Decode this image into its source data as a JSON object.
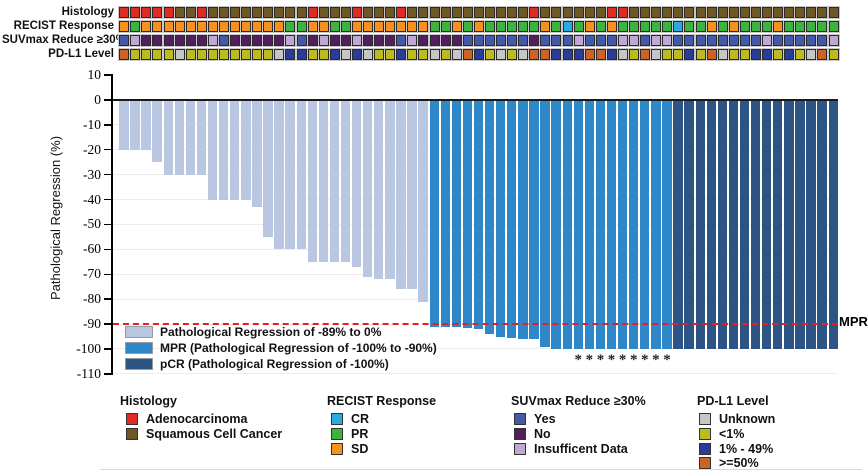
{
  "annotation_tracks": {
    "labels": [
      "Histology",
      "RECIST Response",
      "SUVmax Reduce ≥30%",
      "PD-L1 Level"
    ],
    "histology": [
      "A",
      "A",
      "A",
      "A",
      "A",
      "S",
      "S",
      "A",
      "S",
      "S",
      "S",
      "S",
      "S",
      "S",
      "S",
      "S",
      "S",
      "A",
      "S",
      "S",
      "S",
      "A",
      "S",
      "S",
      "S",
      "A",
      "S",
      "S",
      "S",
      "S",
      "S",
      "S",
      "S",
      "S",
      "S",
      "S",
      "S",
      "A",
      "S",
      "S",
      "S",
      "S",
      "S",
      "S",
      "A",
      "A",
      "S",
      "S",
      "S",
      "S",
      "S",
      "S",
      "S",
      "S",
      "S",
      "S",
      "S",
      "S",
      "S",
      "S",
      "S",
      "S",
      "S",
      "S",
      "S"
    ],
    "recist": [
      "SD",
      "PR",
      "SD",
      "SD",
      "SD",
      "SD",
      "SD",
      "SD",
      "SD",
      "SD",
      "SD",
      "SD",
      "SD",
      "SD",
      "SD",
      "PR",
      "PR",
      "SD",
      "SD",
      "PR",
      "PR",
      "SD",
      "SD",
      "SD",
      "SD",
      "SD",
      "SD",
      "SD",
      "PR",
      "PR",
      "SD",
      "PR",
      "SD",
      "PR",
      "PR",
      "PR",
      "PR",
      "PR",
      "SD",
      "PR",
      "CR",
      "PR",
      "SD",
      "PR",
      "SD",
      "PR",
      "PR",
      "PR",
      "PR",
      "PR",
      "CR",
      "PR",
      "PR",
      "SD",
      "PR",
      "SD",
      "PR",
      "PR",
      "PR",
      "SD",
      "PR",
      "PR",
      "PR",
      "PR",
      "PR"
    ],
    "suvmax": [
      "Y",
      "I",
      "N",
      "N",
      "N",
      "N",
      "N",
      "N",
      "I",
      "Y",
      "N",
      "N",
      "N",
      "N",
      "N",
      "I",
      "Y",
      "N",
      "I",
      "N",
      "N",
      "I",
      "N",
      "N",
      "N",
      "Y",
      "I",
      "N",
      "N",
      "N",
      "N",
      "Y",
      "Y",
      "Y",
      "Y",
      "Y",
      "Y",
      "N",
      "Y",
      "Y",
      "Y",
      "I",
      "Y",
      "Y",
      "Y",
      "I",
      "I",
      "Y",
      "I",
      "I",
      "Y",
      "Y",
      "Y",
      "Y",
      "Y",
      "Y",
      "Y",
      "Y",
      "I",
      "Y",
      "Y",
      "Y",
      "Y",
      "Y",
      "I"
    ],
    "pdl1": [
      "H",
      "L",
      "L",
      "L",
      "L",
      "U",
      "L",
      "L",
      "L",
      "L",
      "L",
      "L",
      "L",
      "L",
      "U",
      "M",
      "M",
      "L",
      "L",
      "M",
      "U",
      "M",
      "U",
      "L",
      "L",
      "M",
      "L",
      "L",
      "U",
      "L",
      "U",
      "H",
      "M",
      "L",
      "U",
      "L",
      "U",
      "H",
      "H",
      "M",
      "M",
      "M",
      "H",
      "H",
      "M",
      "U",
      "L",
      "H",
      "U",
      "L",
      "L",
      "M",
      "L",
      "H",
      "U",
      "L",
      "L",
      "M",
      "M",
      "L",
      "M",
      "L",
      "U",
      "H",
      "L"
    ]
  },
  "colors": {
    "histology": {
      "A": "#e12a26",
      "S": "#6d5826"
    },
    "recist": {
      "CR": "#29aae1",
      "PR": "#3db33d",
      "SD": "#f5921e"
    },
    "suvmax": {
      "Y": "#4459a7",
      "N": "#511f5d",
      "I": "#c1a7d6"
    },
    "pdl1": {
      "U": "#c6c6c6",
      "L": "#bcbc20",
      "M": "#2b3c97",
      "H": "#cd6227"
    },
    "bars": {
      "light": "#b9c7e3",
      "mpr": "#2e87c8",
      "pcr": "#2c5585"
    },
    "reference_line": "#ed1c24"
  },
  "chart_data": {
    "type": "bar",
    "title": "",
    "xlabel": "",
    "ylabel": "Pathological Regression (%)",
    "ylim": [
      -110,
      10
    ],
    "yticks": [
      10,
      0,
      -10,
      -20,
      -30,
      -40,
      -50,
      -60,
      -70,
      -80,
      -90,
      -100,
      -110
    ],
    "grid": true,
    "values": [
      -20,
      -20,
      -20,
      -25,
      -30,
      -30,
      -30,
      -30,
      -40,
      -40,
      -40,
      -40,
      -43,
      -55,
      -60,
      -60,
      -60,
      -65,
      -65,
      -65,
      -65,
      -67,
      -71,
      -72,
      -72,
      -76,
      -76,
      -81,
      -91,
      -91,
      -91,
      -91.5,
      -92,
      -94,
      -95,
      -95.5,
      -96,
      -96,
      -99,
      -100,
      -100,
      -100,
      -100,
      -100,
      -100,
      -100,
      -100,
      -100,
      -100,
      -100,
      -100,
      -100,
      -100,
      -100,
      -100,
      -100,
      -100,
      -100,
      -100,
      -100,
      -100,
      -100,
      -100,
      -100,
      -100
    ],
    "group_ranges": {
      "light": [
        1,
        28
      ],
      "mpr": [
        29,
        50
      ],
      "pcr": [
        51,
        65
      ]
    },
    "asterisk_columns": [
      42,
      43,
      44,
      45,
      46,
      47,
      48,
      49,
      50
    ],
    "reference_line": {
      "value": -90,
      "label": "MPR"
    }
  },
  "plot_legend": {
    "items": [
      {
        "key": "light",
        "label": "Pathological Regression of -89% to 0%"
      },
      {
        "key": "mpr",
        "label": "MPR (Pathological Regression of -100% to -90%)"
      },
      {
        "key": "pcr",
        "label": "pCR (Pathological Regression of -100%)"
      }
    ]
  },
  "bottom_legend": {
    "groups": [
      {
        "title": "Histology",
        "x": 120,
        "sx": 126,
        "items": [
          {
            "label": "Adenocarcinoma",
            "color": "#e12a26"
          },
          {
            "label": "Squamous Cell Cancer",
            "color": "#6d5826"
          }
        ]
      },
      {
        "title": "RECIST Response",
        "x": 327,
        "sx": 331,
        "items": [
          {
            "label": "CR",
            "color": "#29aae1"
          },
          {
            "label": "PR",
            "color": "#3db33d"
          },
          {
            "label": "SD",
            "color": "#f5921e"
          }
        ]
      },
      {
        "title": "SUVmax Reduce ≥30%",
        "x": 511,
        "sx": 514,
        "items": [
          {
            "label": "Yes",
            "color": "#4459a7"
          },
          {
            "label": "No",
            "color": "#511f5d"
          },
          {
            "label": "Insufficent Data",
            "color": "#c1a7d6"
          }
        ]
      },
      {
        "title": "PD-L1 Level",
        "x": 697,
        "sx": 699,
        "items": [
          {
            "label": "Unknown",
            "color": "#c6c6c6"
          },
          {
            "label": "<1%",
            "color": "#bcbc20"
          },
          {
            "label": "1% - 49%",
            "color": "#2b3c97"
          },
          {
            "label": ">=50%",
            "color": "#cd6227"
          }
        ]
      }
    ]
  }
}
